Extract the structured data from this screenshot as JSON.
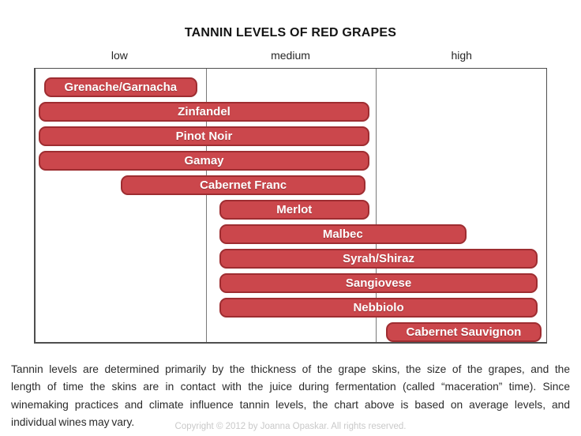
{
  "chart_data": {
    "type": "bar",
    "orientation": "horizontal_range",
    "title": "TANNIN LEVELS OF RED GRAPES",
    "x_axis": {
      "labels": [
        "low",
        "medium",
        "high"
      ],
      "range": [
        0,
        3
      ],
      "gridlines_at": [
        1,
        2
      ]
    },
    "bars": [
      {
        "label": "Grenache/Garnacha",
        "start": 0.05,
        "end": 0.95
      },
      {
        "label": "Zinfandel",
        "start": 0.02,
        "end": 1.96
      },
      {
        "label": "Pinot Noir",
        "start": 0.02,
        "end": 1.96
      },
      {
        "label": "Gamay",
        "start": 0.02,
        "end": 1.96
      },
      {
        "label": "Cabernet Franc",
        "start": 0.5,
        "end": 1.94
      },
      {
        "label": "Merlot",
        "start": 1.08,
        "end": 1.96
      },
      {
        "label": "Malbec",
        "start": 1.08,
        "end": 2.53
      },
      {
        "label": "Syrah/Shiraz",
        "start": 1.08,
        "end": 2.95
      },
      {
        "label": "Sangiovese",
        "start": 1.08,
        "end": 2.95
      },
      {
        "label": "Nebbiolo",
        "start": 1.08,
        "end": 2.95
      },
      {
        "label": "Cabernet Sauvignon",
        "start": 2.06,
        "end": 2.97
      }
    ],
    "colors": {
      "bar_fill": "#cb474c",
      "bar_border": "#9e2d31",
      "bar_label": "#ffffff",
      "plot_border": "#4f4f4f",
      "gridline": "#7a7a7a"
    },
    "legend": "none"
  },
  "footer": {
    "lines": [
      "Tannin levels are determined  primarily by the thickness of the grape skins, the size of the grapes, and the",
      "length of time the skins are in contact with the juice during fermentation (called “maceration” time).  Since",
      "winemaking practices and climate influence tannin levels, the chart above is based on average levels, and",
      "individual wines may vary."
    ],
    "copyright": "Copyright © 2012 by Joanna Opaskar. All rights reserved."
  }
}
